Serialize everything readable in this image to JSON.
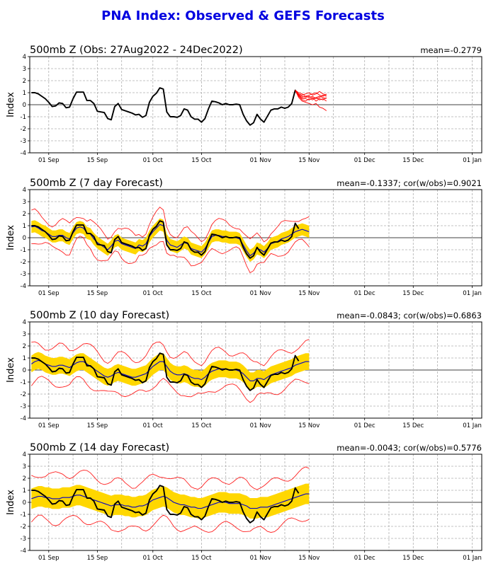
{
  "figure_title": "PNA Index: Observed & GEFS Forecasts",
  "chart_data": [
    {
      "type": "line",
      "title": "500mb Z (Obs: 27Aug2022 - 24Dec2022)",
      "stats": "mean=-0.2779",
      "ylabel": "Index",
      "ylim": [
        -4,
        4
      ],
      "yticks": [
        -4,
        -3,
        -2,
        -1,
        0,
        1,
        2,
        3,
        4
      ],
      "xticklabels": [
        "01 Sep",
        "15 Sep",
        "01 Oct",
        "15 Oct",
        "01 Nov",
        "15 Nov",
        "01 Dec",
        "15 Dec",
        "01 Jan"
      ],
      "grid": true,
      "series": [
        {
          "role": "observed",
          "color": "#000000",
          "values": [
            1.0,
            1.0,
            0.9,
            0.7,
            0.5,
            0.2,
            -0.15,
            -0.1,
            0.15,
            0.1,
            -0.25,
            -0.2,
            0.5,
            1.05,
            1.05,
            1.05,
            0.35,
            0.35,
            0.1,
            -0.55,
            -0.6,
            -0.65,
            -1.15,
            -1.25,
            -0.15,
            0.1,
            -0.4,
            -0.5,
            -0.6,
            -0.7,
            -0.85,
            -0.8,
            -1.05,
            -0.9,
            0.2,
            0.7,
            0.95,
            1.4,
            1.3,
            -0.6,
            -1.0,
            -1.0,
            -1.05,
            -0.9,
            -0.35,
            -0.45,
            -1.0,
            -1.2,
            -1.2,
            -1.45,
            -1.15,
            -0.35,
            0.3,
            0.25,
            0.15,
            0.0,
            0.1,
            0.0,
            0.0,
            0.05,
            0.0,
            -0.8,
            -1.35,
            -1.7,
            -1.5,
            -0.8,
            -1.2,
            -1.45,
            -0.95,
            -0.45,
            -0.35,
            -0.35,
            -0.2,
            -0.3,
            -0.2,
            0.1,
            1.2,
            0.75
          ]
        },
        {
          "role": "ensemble-member",
          "color": "#ff0000",
          "values": [
            1.2,
            0.7,
            0.4,
            0.3,
            0.5,
            0.4,
            0.6,
            0.7,
            0.6,
            0.5
          ]
        },
        {
          "role": "ensemble-member",
          "color": "#ff0000",
          "values": [
            1.2,
            0.9,
            0.8,
            0.9,
            1.0,
            0.8,
            0.9,
            1.1,
            0.9,
            0.8
          ]
        },
        {
          "role": "ensemble-member",
          "color": "#ff0000",
          "values": [
            1.2,
            0.8,
            0.6,
            0.7,
            0.6,
            0.7,
            0.5,
            0.6,
            0.8,
            0.7
          ]
        },
        {
          "role": "ensemble-member",
          "color": "#ff0000",
          "values": [
            1.2,
            0.6,
            0.3,
            0.2,
            0.1,
            0.0,
            0.1,
            -0.2,
            -0.3,
            -0.5
          ]
        },
        {
          "role": "ensemble-member",
          "color": "#ff0000",
          "values": [
            1.2,
            1.0,
            0.9,
            0.7,
            0.8,
            0.9,
            1.0,
            0.8,
            0.7,
            0.9
          ]
        },
        {
          "role": "ensemble-member",
          "color": "#ff0000",
          "values": [
            1.2,
            0.75,
            0.5,
            0.5,
            0.4,
            0.6,
            0.3,
            0.5,
            0.4,
            0.6
          ]
        },
        {
          "role": "ensemble-member",
          "color": "#ff0000",
          "values": [
            1.2,
            0.85,
            0.7,
            0.6,
            0.7,
            0.5,
            0.6,
            0.4,
            0.5,
            0.3
          ]
        }
      ]
    },
    {
      "type": "line",
      "title": "500mb Z (7 day Forecast)",
      "stats": "mean=-0.1337; cor(w/obs)=0.9021",
      "ylabel": "Index",
      "ylim": [
        -4,
        4
      ],
      "yticks": [
        -4,
        -3,
        -2,
        -1,
        0,
        1,
        2,
        3,
        4
      ],
      "xticklabels": [
        "01 Sep",
        "15 Sep",
        "01 Oct",
        "15 Oct",
        "01 Nov",
        "15 Nov",
        "01 Dec",
        "15 Dec",
        "01 Jan"
      ],
      "grid": true,
      "shade_color": "#ffd700",
      "spread_band": 0.5,
      "extreme_band": 1.1,
      "series": [
        {
          "role": "ensemble-mean",
          "color": "#0000cc",
          "values": [
            0.9,
            0.95,
            0.8,
            0.6,
            0.5,
            0.3,
            0.1,
            0.1,
            0.2,
            0.2,
            0.0,
            -0.1,
            0.4,
            0.8,
            0.9,
            0.8,
            0.4,
            0.3,
            -0.1,
            -0.4,
            -0.6,
            -0.8,
            -1.0,
            -0.7,
            -0.3,
            -0.2,
            -0.5,
            -0.6,
            -0.7,
            -0.8,
            -0.9,
            -0.6,
            -0.7,
            -0.5,
            0.1,
            0.5,
            0.8,
            1.1,
            1.0,
            -0.2,
            -0.6,
            -0.7,
            -0.8,
            -0.6,
            -0.4,
            -0.5,
            -0.9,
            -1.0,
            -1.1,
            -1.2,
            -0.9,
            -0.4,
            0.1,
            0.2,
            0.2,
            0.1,
            0.1,
            0.0,
            0.0,
            0.0,
            -0.1,
            -0.6,
            -1.1,
            -1.5,
            -1.3,
            -0.9,
            -1.0,
            -1.2,
            -0.9,
            -0.5,
            -0.4,
            -0.3,
            -0.1,
            0.0,
            0.1,
            0.3,
            0.5,
            0.6,
            0.7,
            0.6,
            0.5
          ]
        },
        {
          "role": "observed",
          "color": "#000000",
          "values": [
            1.0,
            1.0,
            0.9,
            0.7,
            0.5,
            0.2,
            -0.15,
            -0.1,
            0.15,
            0.1,
            -0.25,
            -0.2,
            0.5,
            1.05,
            1.05,
            1.05,
            0.35,
            0.35,
            0.1,
            -0.55,
            -0.6,
            -0.65,
            -1.15,
            -1.25,
            -0.15,
            0.1,
            -0.4,
            -0.5,
            -0.6,
            -0.7,
            -0.85,
            -0.8,
            -1.05,
            -0.9,
            0.2,
            0.7,
            0.95,
            1.4,
            1.3,
            -0.6,
            -1.0,
            -1.0,
            -1.05,
            -0.9,
            -0.35,
            -0.45,
            -1.0,
            -1.2,
            -1.2,
            -1.45,
            -1.15,
            -0.35,
            0.3,
            0.25,
            0.15,
            0.0,
            0.1,
            0.0,
            0.0,
            0.05,
            0.0,
            -0.8,
            -1.35,
            -1.7,
            -1.5,
            -0.8,
            -1.2,
            -1.45,
            -0.95,
            -0.45,
            -0.35,
            -0.35,
            -0.2,
            -0.3,
            -0.2,
            0.1,
            1.2,
            0.75
          ]
        }
      ]
    },
    {
      "type": "line",
      "title": "500mb Z (10 day Forecast)",
      "stats": "mean=-0.0843; cor(w/obs)=0.6863",
      "ylabel": "Index",
      "ylim": [
        -4,
        4
      ],
      "yticks": [
        -4,
        -3,
        -2,
        -1,
        0,
        1,
        2,
        3,
        4
      ],
      "xticklabels": [
        "01 Sep",
        "15 Sep",
        "01 Oct",
        "15 Oct",
        "01 Nov",
        "15 Nov",
        "01 Dec",
        "15 Dec",
        "01 Jan"
      ],
      "grid": true,
      "shade_color": "#ffd700",
      "spread_band": 0.7,
      "extreme_band": 1.5,
      "series": [
        {
          "role": "ensemble-mean",
          "color": "#0000cc",
          "values": [
            0.5,
            0.7,
            0.8,
            0.7,
            0.5,
            0.4,
            0.3,
            0.3,
            0.4,
            0.4,
            0.3,
            0.2,
            0.4,
            0.6,
            0.7,
            0.7,
            0.5,
            0.3,
            0.1,
            -0.1,
            -0.3,
            -0.5,
            -0.6,
            -0.5,
            -0.3,
            -0.2,
            -0.3,
            -0.4,
            -0.5,
            -0.6,
            -0.6,
            -0.5,
            -0.4,
            -0.3,
            0.0,
            0.3,
            0.5,
            0.7,
            0.7,
            0.3,
            -0.1,
            -0.3,
            -0.4,
            -0.4,
            -0.3,
            -0.4,
            -0.6,
            -0.7,
            -0.7,
            -0.8,
            -0.6,
            -0.3,
            -0.1,
            0.0,
            0.1,
            0.1,
            0.1,
            0.0,
            0.0,
            0.0,
            -0.1,
            -0.3,
            -0.6,
            -0.9,
            -0.9,
            -0.7,
            -0.7,
            -0.8,
            -0.6,
            -0.4,
            -0.3,
            -0.2,
            -0.1,
            0.0,
            0.1,
            0.2,
            0.4,
            0.5,
            0.6,
            0.7,
            0.7
          ]
        },
        {
          "role": "observed",
          "color": "#000000",
          "values": [
            1.0,
            1.0,
            0.9,
            0.7,
            0.5,
            0.2,
            -0.15,
            -0.1,
            0.15,
            0.1,
            -0.25,
            -0.2,
            0.5,
            1.05,
            1.05,
            1.05,
            0.35,
            0.35,
            0.1,
            -0.55,
            -0.6,
            -0.65,
            -1.15,
            -1.25,
            -0.15,
            0.1,
            -0.4,
            -0.5,
            -0.6,
            -0.7,
            -0.85,
            -0.8,
            -1.05,
            -0.9,
            0.2,
            0.7,
            0.95,
            1.4,
            1.3,
            -0.6,
            -1.0,
            -1.0,
            -1.05,
            -0.9,
            -0.35,
            -0.45,
            -1.0,
            -1.2,
            -1.2,
            -1.45,
            -1.15,
            -0.35,
            0.3,
            0.25,
            0.15,
            0.0,
            0.1,
            0.0,
            0.0,
            0.05,
            0.0,
            -0.8,
            -1.35,
            -1.7,
            -1.5,
            -0.8,
            -1.2,
            -1.45,
            -0.95,
            -0.45,
            -0.35,
            -0.35,
            -0.2,
            -0.3,
            -0.2,
            0.1,
            1.2,
            0.75
          ]
        }
      ]
    },
    {
      "type": "line",
      "title": "500mb Z (14 day Forecast)",
      "stats": "mean=-0.0043; cor(w/obs)=0.5776",
      "ylabel": "Index",
      "ylim": [
        -4,
        4
      ],
      "yticks": [
        -4,
        -3,
        -2,
        -1,
        0,
        1,
        2,
        3,
        4
      ],
      "xticklabels": [
        "01 Sep",
        "15 Sep",
        "01 Oct",
        "15 Oct",
        "01 Nov",
        "15 Nov",
        "01 Dec",
        "15 Dec",
        "01 Jan"
      ],
      "grid": true,
      "shade_color": "#ffd700",
      "spread_band": 0.85,
      "extreme_band": 1.9,
      "series": [
        {
          "role": "ensemble-mean",
          "color": "#0000cc",
          "values": [
            0.3,
            0.4,
            0.5,
            0.5,
            0.4,
            0.4,
            0.3,
            0.3,
            0.3,
            0.4,
            0.4,
            0.4,
            0.5,
            0.6,
            0.6,
            0.5,
            0.4,
            0.3,
            0.2,
            0.1,
            0.0,
            -0.1,
            -0.2,
            -0.3,
            -0.2,
            -0.2,
            -0.2,
            -0.3,
            -0.3,
            -0.4,
            -0.4,
            -0.3,
            -0.3,
            -0.2,
            0.0,
            0.2,
            0.3,
            0.4,
            0.5,
            0.4,
            0.2,
            0.0,
            -0.1,
            -0.2,
            -0.2,
            -0.3,
            -0.4,
            -0.4,
            -0.5,
            -0.5,
            -0.4,
            -0.3,
            -0.2,
            -0.1,
            0.0,
            0.0,
            0.0,
            -0.1,
            -0.1,
            -0.1,
            -0.1,
            -0.2,
            -0.3,
            -0.5,
            -0.5,
            -0.5,
            -0.4,
            -0.4,
            -0.4,
            -0.3,
            -0.2,
            -0.1,
            0.0,
            0.1,
            0.2,
            0.3,
            0.4,
            0.5,
            0.6,
            0.7,
            0.7
          ]
        },
        {
          "role": "observed",
          "color": "#000000",
          "values": [
            1.0,
            1.0,
            0.9,
            0.7,
            0.5,
            0.2,
            -0.15,
            -0.1,
            0.15,
            0.1,
            -0.25,
            -0.2,
            0.5,
            1.05,
            1.05,
            1.05,
            0.35,
            0.35,
            0.1,
            -0.55,
            -0.6,
            -0.65,
            -1.15,
            -1.25,
            -0.15,
            0.1,
            -0.4,
            -0.5,
            -0.6,
            -0.7,
            -0.85,
            -0.8,
            -1.05,
            -0.9,
            0.2,
            0.7,
            0.95,
            1.4,
            1.3,
            -0.6,
            -1.0,
            -1.0,
            -1.05,
            -0.9,
            -0.35,
            -0.45,
            -1.0,
            -1.2,
            -1.2,
            -1.45,
            -1.15,
            -0.35,
            0.3,
            0.25,
            0.15,
            0.0,
            0.1,
            0.0,
            0.0,
            0.05,
            0.0,
            -0.8,
            -1.35,
            -1.7,
            -1.5,
            -0.8,
            -1.2,
            -1.45,
            -0.95,
            -0.45,
            -0.35,
            -0.35,
            -0.2,
            -0.3,
            -0.2,
            0.1,
            1.2,
            0.75
          ]
        }
      ]
    }
  ]
}
